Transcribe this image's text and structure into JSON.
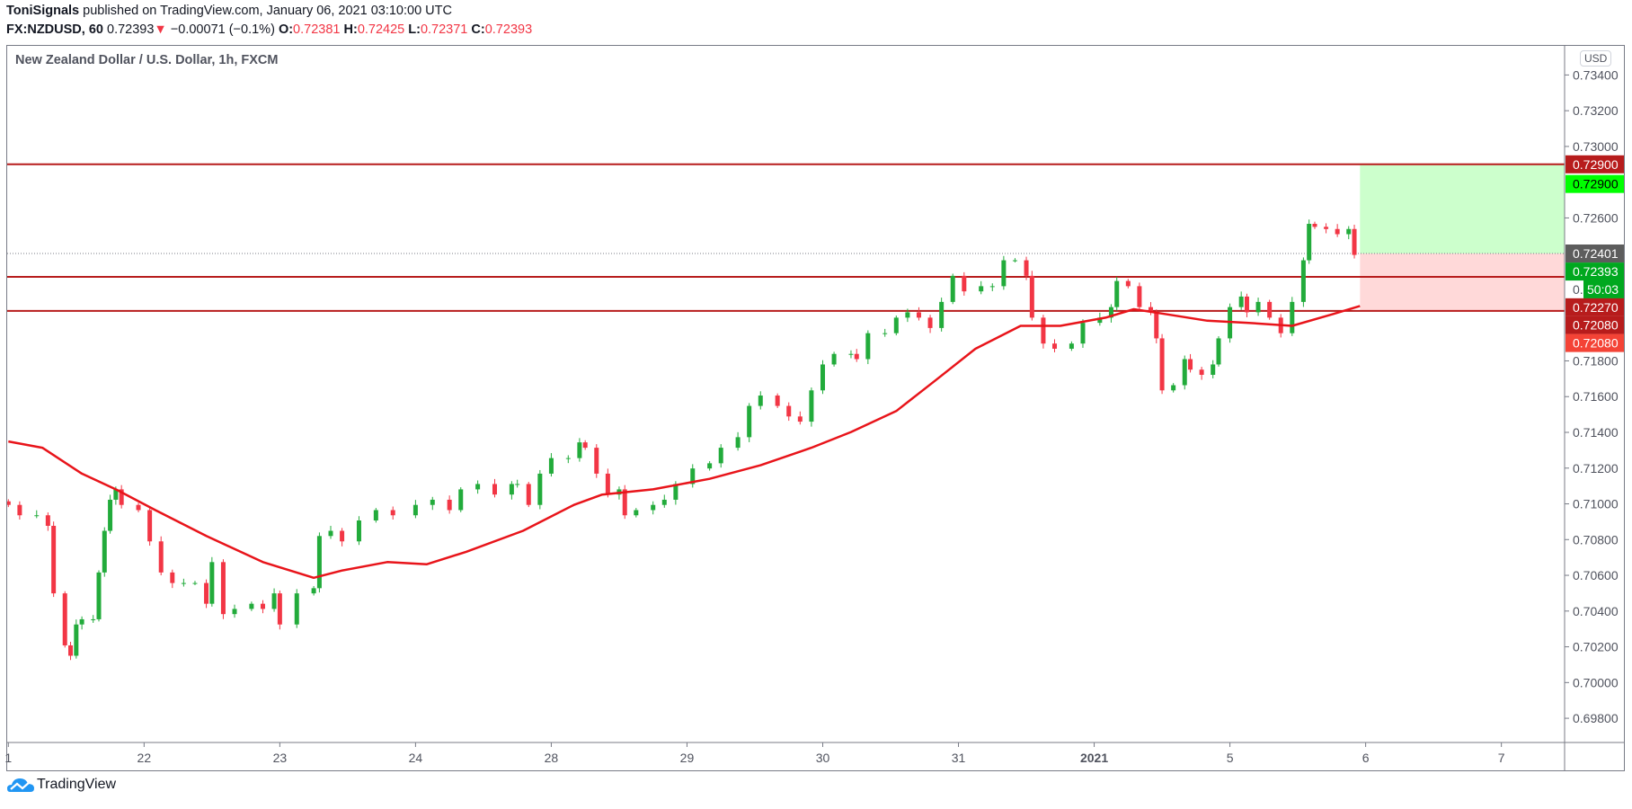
{
  "header": {
    "author": "ToniSignals",
    "published": "published on TradingView.com, January 06, 2021 03:10:00 UTC",
    "symbol": "FX:NZDUSD, 60",
    "last": "0.72393",
    "change": "−0.00071 (−0.1%)",
    "o_label": "O:",
    "o": "0.72381",
    "h_label": "H:",
    "h": "0.72425",
    "l_label": "L:",
    "l": "0.72371",
    "c_label": "C:",
    "c": "0.72393"
  },
  "chart_title": "New Zealand Dollar / U.S. Dollar, 1h, FXCM",
  "currency": "USD",
  "footer": {
    "brand": "TradingView"
  },
  "colors": {
    "up": "#089981",
    "upc": "#22ab3b",
    "down": "#f23645",
    "ma": "#e8141a",
    "level": "#b71c1c",
    "tp": "#ccffcc",
    "sl": "#ffd9d9"
  },
  "chart_data": {
    "type": "candlestick",
    "title": "New Zealand Dollar / U.S. Dollar, 1h, FXCM",
    "ylim": [
      0.6972,
      0.7352
    ],
    "y_ticks": [
      "0.73400",
      "0.73200",
      "0.73000",
      "0.72600",
      "0.71800",
      "0.71600",
      "0.71400",
      "0.71200",
      "0.71000",
      "0.70800",
      "0.70600",
      "0.70400",
      "0.70200",
      "0.70000",
      "0.69800"
    ],
    "x_ticks": [
      {
        "h": 0,
        "label": "1"
      },
      {
        "h": 24,
        "label": "22"
      },
      {
        "h": 48,
        "label": "23"
      },
      {
        "h": 72,
        "label": "24"
      },
      {
        "h": 96,
        "label": "28"
      },
      {
        "h": 120,
        "label": "29"
      },
      {
        "h": 144,
        "label": "30"
      },
      {
        "h": 168,
        "label": "31"
      },
      {
        "h": 192,
        "label": "2021",
        "bold": true
      },
      {
        "h": 216,
        "label": "5"
      },
      {
        "h": 240,
        "label": "6"
      },
      {
        "h": 264,
        "label": "7"
      }
    ],
    "closes_by_hour": [
      [
        0,
        0.70994
      ],
      [
        2,
        0.70936
      ],
      [
        5,
        0.70936
      ],
      [
        7,
        0.70877
      ],
      [
        8,
        0.70499
      ],
      [
        10,
        0.70208
      ],
      [
        11,
        0.7015
      ],
      [
        12,
        0.70325
      ],
      [
        13,
        0.70354
      ],
      [
        15,
        0.70354
      ],
      [
        16,
        0.70616
      ],
      [
        17,
        0.70849
      ],
      [
        18,
        0.71023
      ],
      [
        19,
        0.71081
      ],
      [
        20,
        0.70994
      ],
      [
        23,
        0.70965
      ],
      [
        25,
        0.7079
      ],
      [
        27,
        0.70616
      ],
      [
        29,
        0.70557
      ],
      [
        31,
        0.70557
      ],
      [
        33,
        0.70557
      ],
      [
        35,
        0.70441
      ],
      [
        36,
        0.70674
      ],
      [
        38,
        0.70383
      ],
      [
        40,
        0.70412
      ],
      [
        43,
        0.70441
      ],
      [
        45,
        0.70412
      ],
      [
        47,
        0.70499
      ],
      [
        48,
        0.70325
      ],
      [
        51,
        0.70499
      ],
      [
        54,
        0.70528
      ],
      [
        55,
        0.7082
      ],
      [
        57,
        0.70849
      ],
      [
        59,
        0.7079
      ],
      [
        62,
        0.70907
      ],
      [
        65,
        0.70965
      ],
      [
        68,
        0.70936
      ],
      [
        72,
        0.70994
      ],
      [
        75,
        0.71023
      ],
      [
        78,
        0.70965
      ],
      [
        80,
        0.71081
      ],
      [
        83,
        0.71111
      ],
      [
        86,
        0.71052
      ],
      [
        89,
        0.71111
      ],
      [
        90,
        0.71111
      ],
      [
        92,
        0.70994
      ],
      [
        94,
        0.71169
      ],
      [
        96,
        0.71256
      ],
      [
        99,
        0.71256
      ],
      [
        101,
        0.71344
      ],
      [
        102,
        0.71314
      ],
      [
        104,
        0.71169
      ],
      [
        106,
        0.71052
      ],
      [
        108,
        0.71081
      ],
      [
        109,
        0.70936
      ],
      [
        111,
        0.70965
      ],
      [
        114,
        0.70994
      ],
      [
        116,
        0.71023
      ],
      [
        118,
        0.71111
      ],
      [
        121,
        0.71198
      ],
      [
        124,
        0.71227
      ],
      [
        126,
        0.71314
      ],
      [
        129,
        0.71373
      ],
      [
        131,
        0.71548
      ],
      [
        133,
        0.71606
      ],
      [
        136,
        0.71548
      ],
      [
        138,
        0.71489
      ],
      [
        140,
        0.7146
      ],
      [
        142,
        0.71635
      ],
      [
        144,
        0.7178
      ],
      [
        146,
        0.71839
      ],
      [
        149,
        0.71839
      ],
      [
        150,
        0.7181
      ],
      [
        152,
        0.71955
      ],
      [
        155,
        0.71955
      ],
      [
        157,
        0.72042
      ],
      [
        159,
        0.72072
      ],
      [
        161,
        0.72042
      ],
      [
        163,
        0.71984
      ],
      [
        165,
        0.7213
      ],
      [
        167,
        0.72276
      ],
      [
        169,
        0.72189
      ],
      [
        172,
        0.72218
      ],
      [
        174,
        0.72218
      ],
      [
        176,
        0.72363
      ],
      [
        178,
        0.72363
      ],
      [
        180,
        0.72276
      ],
      [
        181,
        0.72042
      ],
      [
        183,
        0.71897
      ],
      [
        185,
        0.71868
      ],
      [
        188,
        0.71897
      ],
      [
        190,
        0.72013
      ],
      [
        193,
        0.72042
      ],
      [
        195,
        0.72101
      ],
      [
        196,
        0.72247
      ],
      [
        198,
        0.72218
      ],
      [
        200,
        0.72101
      ],
      [
        202,
        0.72072
      ],
      [
        203,
        0.71926
      ],
      [
        204,
        0.71635
      ],
      [
        206,
        0.71664
      ],
      [
        208,
        0.7181
      ],
      [
        209,
        0.71751
      ],
      [
        211,
        0.71722
      ],
      [
        213,
        0.7178
      ],
      [
        214,
        0.71926
      ],
      [
        216,
        0.72101
      ],
      [
        218,
        0.7216
      ],
      [
        219,
        0.72072
      ],
      [
        221,
        0.7213
      ],
      [
        223,
        0.72042
      ],
      [
        225,
        0.71955
      ],
      [
        227,
        0.7213
      ],
      [
        229,
        0.72363
      ],
      [
        230,
        0.72567
      ],
      [
        231,
        0.7255
      ],
      [
        233,
        0.72538
      ],
      [
        235,
        0.72509
      ],
      [
        237,
        0.72538
      ],
      [
        238,
        0.72393
      ]
    ],
    "moving_average": [
      [
        0,
        0.71349
      ],
      [
        6,
        0.71314
      ],
      [
        13,
        0.71169
      ],
      [
        19,
        0.71081
      ],
      [
        26,
        0.70965
      ],
      [
        35,
        0.7082
      ],
      [
        45,
        0.70674
      ],
      [
        54,
        0.70586
      ],
      [
        59,
        0.70627
      ],
      [
        67,
        0.70674
      ],
      [
        74,
        0.70662
      ],
      [
        81,
        0.70732
      ],
      [
        91,
        0.70849
      ],
      [
        100,
        0.70994
      ],
      [
        105,
        0.71052
      ],
      [
        114,
        0.71081
      ],
      [
        124,
        0.7114
      ],
      [
        133,
        0.71216
      ],
      [
        142,
        0.71314
      ],
      [
        149,
        0.71402
      ],
      [
        157,
        0.71519
      ],
      [
        164,
        0.71693
      ],
      [
        171,
        0.71868
      ],
      [
        179,
        0.71996
      ],
      [
        186,
        0.71996
      ],
      [
        194,
        0.72042
      ],
      [
        199,
        0.72089
      ],
      [
        205,
        0.7206
      ],
      [
        212,
        0.72025
      ],
      [
        219,
        0.72013
      ],
      [
        227,
        0.71996
      ],
      [
        234,
        0.7206
      ],
      [
        239,
        0.72107
      ]
    ],
    "levels": [
      0.729,
      0.7227,
      0.7208
    ],
    "position": {
      "entry": 0.72401,
      "target": 0.729,
      "stop": 0.7208,
      "start_h": 239
    },
    "price_badges": [
      {
        "price": 0.729,
        "label": "0.72900",
        "bg": "#b71c1c",
        "fg": "#fff"
      },
      {
        "price": 0.7279,
        "label": "0.72900",
        "bg": "#00ff00",
        "fg": "#000"
      },
      {
        "price": 0.72401,
        "label": "0.72401",
        "bg": "#5d5d5d",
        "fg": "#fff"
      },
      {
        "price": 0.723,
        "label": "0.72393",
        "bg": "#00a81f",
        "fg": "#fff"
      },
      {
        "price": 0.722,
        "label": "50:03",
        "bg": "#00a81f",
        "fg": "#fff",
        "countdown": true
      },
      {
        "price": 0.721,
        "label": "0.72270",
        "bg": "#b71c1c",
        "fg": "#fff"
      },
      {
        "price": 0.72,
        "label": "0.72080",
        "bg": "#b71c1c",
        "fg": "#fff"
      },
      {
        "price": 0.719,
        "label": "0.72080",
        "bg": "#f44336",
        "fg": "#fff"
      }
    ]
  }
}
